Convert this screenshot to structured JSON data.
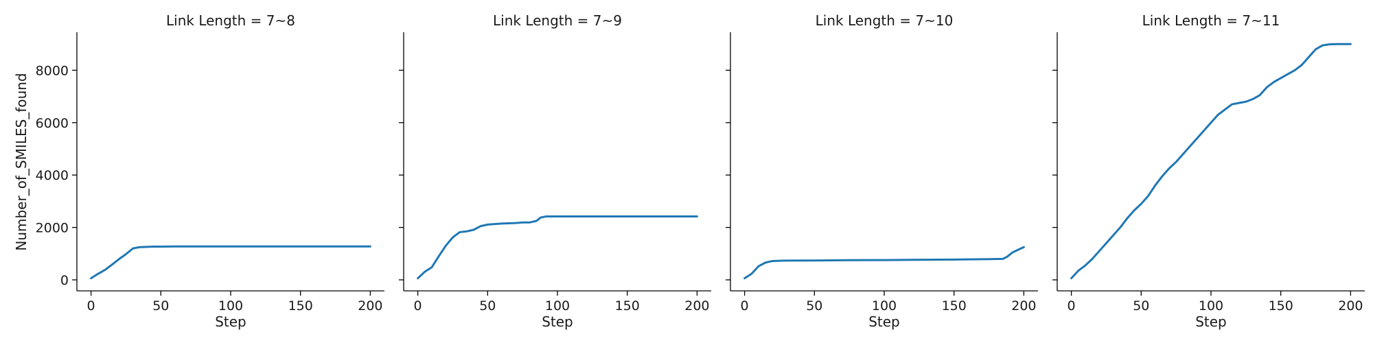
{
  "figure": {
    "y_axis_label": "Number_of_SMILES_found"
  },
  "colors": {
    "series": "#1f77b4"
  },
  "chart_data": [
    {
      "type": "line",
      "title": "Link Length = 7~8",
      "xlabel": "Step",
      "ylabel": "Number_of_SMILES_found",
      "xlim": [
        0,
        200
      ],
      "ylim": [
        0,
        9000
      ],
      "x_ticks": [
        0,
        50,
        100,
        150,
        200
      ],
      "y_ticks": [
        0,
        2000,
        4000,
        6000,
        8000
      ],
      "grid": false,
      "series": [
        {
          "x": [
            0,
            5,
            10,
            15,
            20,
            25,
            30,
            35,
            40,
            45,
            50,
            60,
            80,
            100,
            120,
            140,
            160,
            180,
            200
          ],
          "y": [
            60,
            230,
            380,
            580,
            790,
            980,
            1200,
            1250,
            1260,
            1270,
            1270,
            1275,
            1275,
            1275,
            1275,
            1275,
            1275,
            1275,
            1275
          ]
        }
      ]
    },
    {
      "type": "line",
      "title": "Link Length = 7~9",
      "xlabel": "Step",
      "ylabel": "",
      "xlim": [
        0,
        200
      ],
      "ylim": [
        0,
        9000
      ],
      "x_ticks": [
        0,
        50,
        100,
        150,
        200
      ],
      "y_ticks": [
        0,
        2000,
        4000,
        6000,
        8000
      ],
      "grid": false,
      "series": [
        {
          "x": [
            0,
            5,
            10,
            15,
            20,
            25,
            30,
            35,
            40,
            45,
            50,
            55,
            60,
            70,
            75,
            80,
            85,
            88,
            92,
            95,
            100,
            120,
            150,
            180,
            200
          ],
          "y": [
            60,
            310,
            480,
            900,
            1300,
            1620,
            1820,
            1850,
            1910,
            2050,
            2110,
            2130,
            2150,
            2170,
            2190,
            2190,
            2250,
            2380,
            2420,
            2420,
            2420,
            2420,
            2420,
            2420,
            2420
          ]
        }
      ]
    },
    {
      "type": "line",
      "title": "Link Length = 7~10",
      "xlabel": "Step",
      "ylabel": "",
      "xlim": [
        0,
        200
      ],
      "ylim": [
        0,
        9000
      ],
      "x_ticks": [
        0,
        50,
        100,
        150,
        200
      ],
      "y_ticks": [
        0,
        2000,
        4000,
        6000,
        8000
      ],
      "grid": false,
      "series": [
        {
          "x": [
            0,
            5,
            10,
            15,
            20,
            25,
            30,
            50,
            75,
            100,
            120,
            150,
            175,
            185,
            188,
            192,
            196,
            200
          ],
          "y": [
            60,
            230,
            520,
            660,
            720,
            730,
            735,
            740,
            750,
            755,
            765,
            775,
            790,
            800,
            880,
            1050,
            1150,
            1250
          ]
        }
      ]
    },
    {
      "type": "line",
      "title": "Link Length = 7~11",
      "xlabel": "Step",
      "ylabel": "",
      "xlim": [
        0,
        200
      ],
      "ylim": [
        0,
        9000
      ],
      "x_ticks": [
        0,
        50,
        100,
        150,
        200
      ],
      "y_ticks": [
        0,
        2000,
        4000,
        6000,
        8000
      ],
      "grid": false,
      "series": [
        {
          "x": [
            0,
            5,
            10,
            15,
            20,
            25,
            30,
            35,
            40,
            45,
            50,
            55,
            60,
            65,
            70,
            75,
            80,
            85,
            90,
            95,
            100,
            105,
            110,
            115,
            120,
            125,
            130,
            135,
            140,
            145,
            150,
            155,
            160,
            165,
            170,
            175,
            180,
            185,
            190,
            195,
            200
          ],
          "y": [
            60,
            350,
            550,
            800,
            1100,
            1400,
            1700,
            2000,
            2350,
            2650,
            2900,
            3200,
            3600,
            3950,
            4250,
            4500,
            4800,
            5100,
            5400,
            5700,
            6000,
            6300,
            6500,
            6700,
            6750,
            6800,
            6900,
            7050,
            7350,
            7550,
            7700,
            7850,
            8000,
            8200,
            8500,
            8800,
            8950,
            8990,
            9000,
            9000,
            9000
          ]
        }
      ]
    }
  ]
}
